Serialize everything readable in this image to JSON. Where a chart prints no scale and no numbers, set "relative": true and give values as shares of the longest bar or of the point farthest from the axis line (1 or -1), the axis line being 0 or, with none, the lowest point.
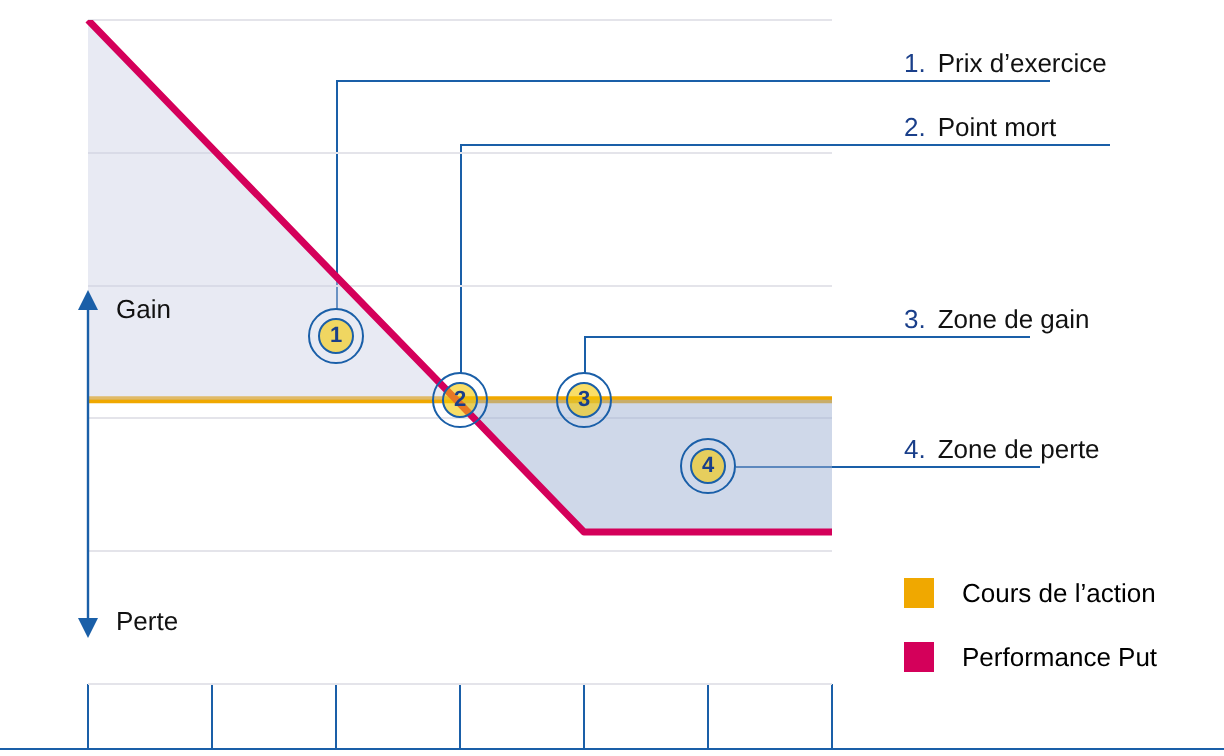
{
  "chart_data": {
    "type": "line",
    "relative": true,
    "categories": [
      null,
      null,
      null,
      null,
      null,
      null,
      null
    ],
    "series": [
      {
        "name": "Cours de l’action",
        "color": "#f0a800",
        "values": [
          0.428,
          0.428,
          0.428,
          0.428,
          0.428,
          0.428,
          0.428
        ]
      },
      {
        "name": "Performance Put",
        "color": "#d4005a",
        "values": [
          1,
          0.807,
          0.614,
          0.422,
          0.229,
          0.229,
          0.229
        ]
      }
    ],
    "annotations": [
      "1. Prix d’exercice",
      "2. Point mort",
      "3. Zone de gain",
      "4. Zone de perte",
      "1",
      "2",
      "3",
      "4",
      "Gain",
      "Perte"
    ],
    "grid": "y",
    "legend": "bottom right",
    "marker": "none",
    "line_style": "solid"
  }
}
